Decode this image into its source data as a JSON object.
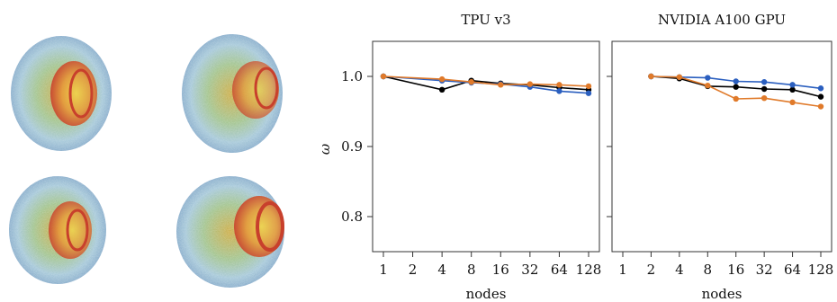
{
  "chart_data": [
    {
      "type": "line",
      "title": "TPU v3",
      "xlabel": "nodes",
      "ylabel": "ω",
      "x_scale": "log2",
      "x": [
        1,
        2,
        4,
        8,
        16,
        32,
        64,
        128
      ],
      "x_ticks": [
        "1",
        "2",
        "4",
        "8",
        "16",
        "32",
        "64",
        "128"
      ],
      "y_ticks": [
        "0.8",
        "0.9",
        "1.0"
      ],
      "ylim": [
        0.75,
        1.05
      ],
      "grid": false,
      "series": [
        {
          "color": "#000000",
          "x": [
            1,
            4,
            8,
            16,
            32,
            64,
            128
          ],
          "values": [
            1.0,
            0.981,
            0.994,
            0.99,
            0.988,
            0.984,
            0.981
          ]
        },
        {
          "color": "#2b5fbf",
          "x": [
            1,
            4,
            8,
            16,
            32,
            64,
            128
          ],
          "values": [
            1.0,
            0.994,
            0.991,
            0.989,
            0.985,
            0.979,
            0.976
          ]
        },
        {
          "color": "#e07a2a",
          "x": [
            1,
            4,
            8,
            16,
            32,
            64,
            128
          ],
          "values": [
            1.0,
            0.996,
            0.992,
            0.988,
            0.989,
            0.988,
            0.986
          ]
        }
      ]
    },
    {
      "type": "line",
      "title": "NVIDIA A100 GPU",
      "xlabel": "nodes",
      "ylabel": "",
      "x_scale": "log2",
      "x": [
        1,
        2,
        4,
        8,
        16,
        32,
        64,
        128
      ],
      "x_ticks": [
        "1",
        "2",
        "4",
        "8",
        "16",
        "32",
        "64",
        "128"
      ],
      "y_ticks": [
        "",
        "",
        ""
      ],
      "ylim": [
        0.75,
        1.05
      ],
      "grid": false,
      "series": [
        {
          "color": "#000000",
          "x": [
            2,
            4,
            8,
            16,
            32,
            64,
            128
          ],
          "values": [
            1.0,
            0.997,
            0.986,
            0.985,
            0.982,
            0.981,
            0.971
          ]
        },
        {
          "color": "#2b5fbf",
          "x": [
            2,
            4,
            8,
            16,
            32,
            64,
            128
          ],
          "values": [
            1.0,
            0.999,
            0.998,
            0.993,
            0.992,
            0.988,
            0.983
          ]
        },
        {
          "color": "#e07a2a",
          "x": [
            2,
            4,
            8,
            16,
            32,
            64,
            128
          ],
          "values": [
            1.0,
            0.999,
            0.987,
            0.968,
            0.969,
            0.963,
            0.957
          ]
        }
      ]
    }
  ]
}
